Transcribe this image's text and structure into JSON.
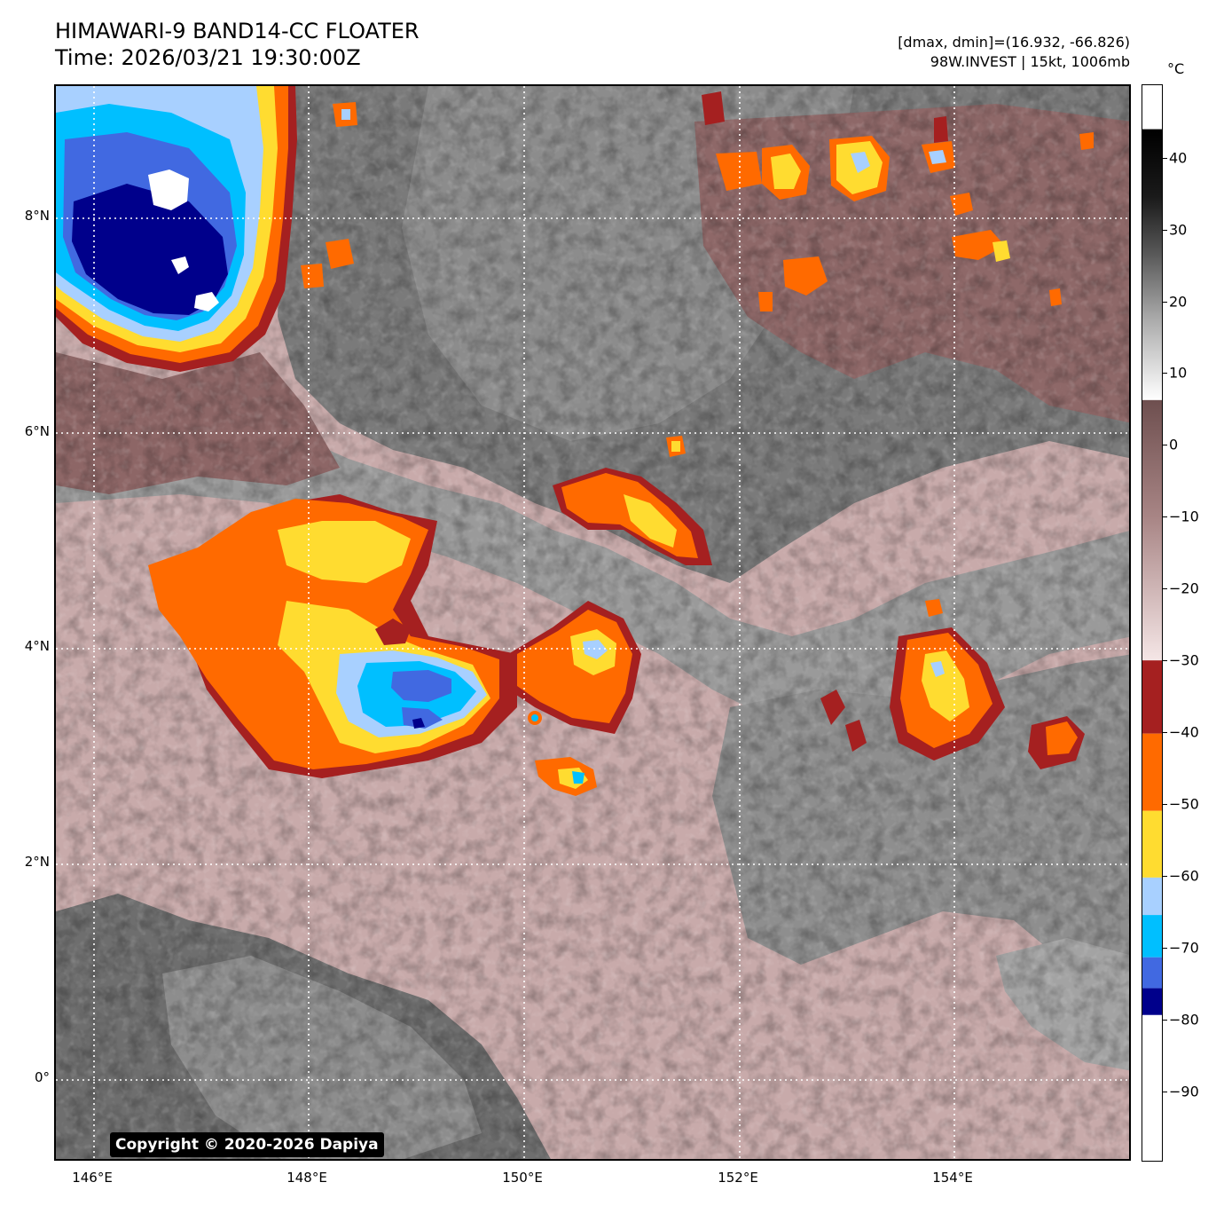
{
  "header": {
    "title_line1": "HIMAWARI-9 BAND14-CC FLOATER",
    "title_line2": "Time: 2026/03/21 19:30:00Z",
    "range_text": "[dmax, dmin]=(16.932, -66.826)",
    "storm_text": "98W.INVEST | 15kt, 1006mb"
  },
  "map": {
    "copyright": "Copyright © 2020-2026 Dapiya",
    "lat_labels": [
      "8°N",
      "6°N",
      "4°N",
      "2°N",
      "0°"
    ],
    "lon_labels": [
      "146°E",
      "148°E",
      "150°E",
      "152°E",
      "154°E"
    ]
  },
  "colorbar": {
    "unit": "°C",
    "labels": [
      "40",
      "30",
      "20",
      "10",
      "0",
      "−10",
      "−20",
      "−30",
      "−40",
      "−50",
      "−60",
      "−70",
      "−80",
      "−90"
    ],
    "colors": {
      "dark_red": "#a52020",
      "orange": "#ff6a00",
      "yellow": "#ffdc30",
      "light_blue": "#a8d0ff",
      "cyan": "#00bfff",
      "royal_blue": "#4169e1",
      "navy": "#00008b",
      "white": "#ffffff"
    }
  }
}
